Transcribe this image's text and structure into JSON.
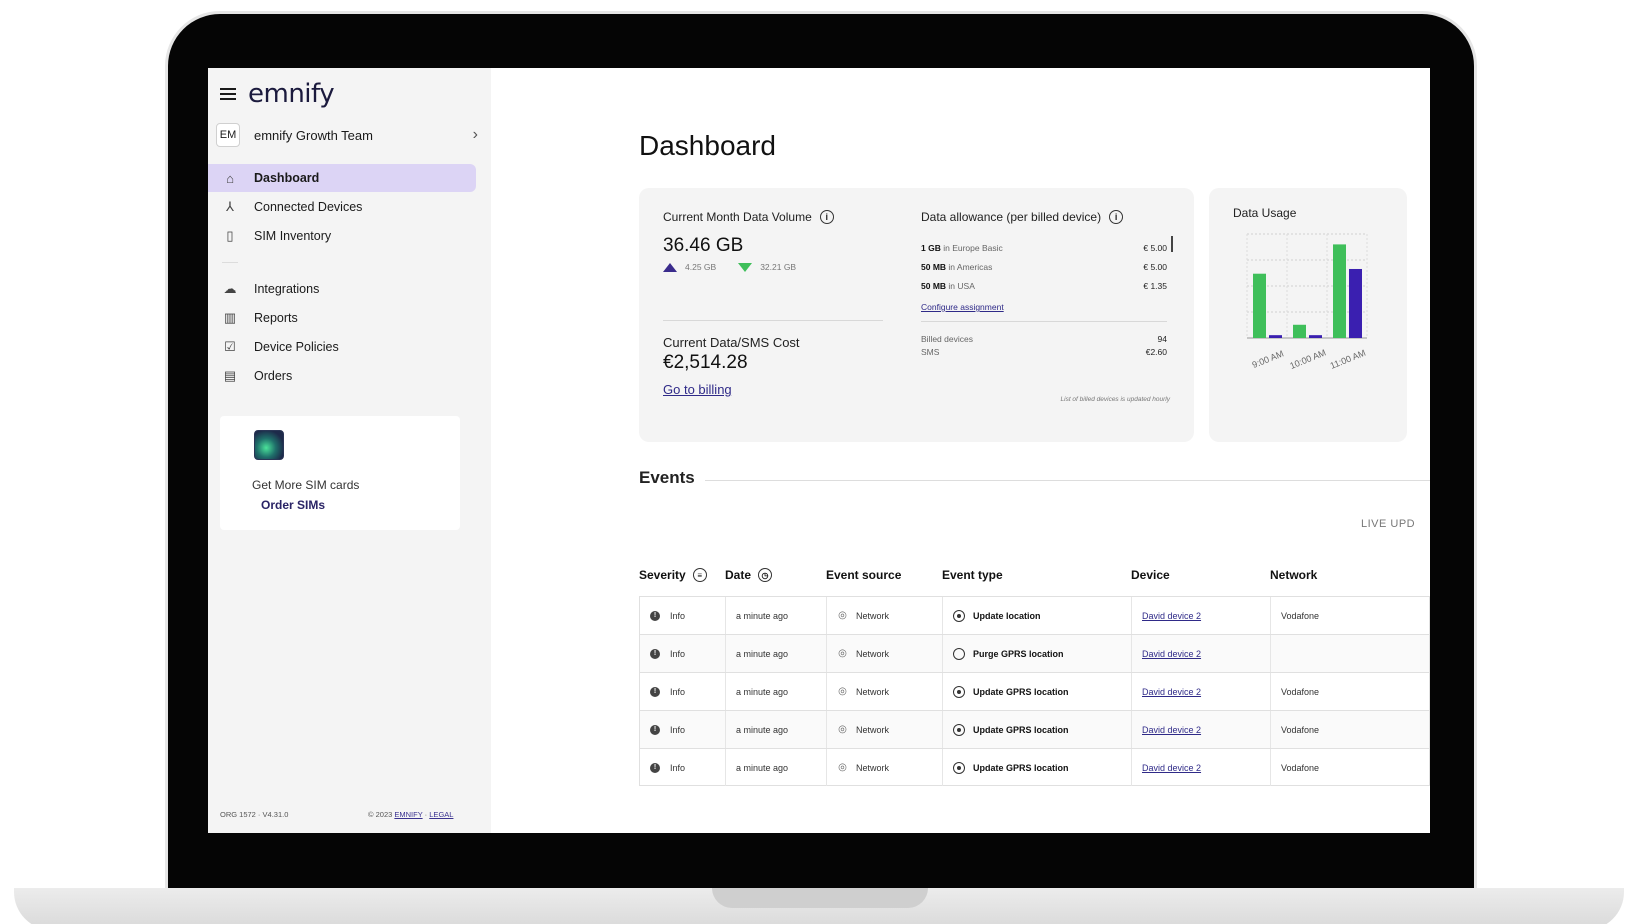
{
  "sidebar": {
    "logo": "emnify",
    "org_badge": "EM",
    "org_name": "emnify Growth Team",
    "nav_primary": [
      {
        "label": "Dashboard",
        "icon": "home-icon",
        "active": true
      },
      {
        "label": "Connected Devices",
        "icon": "devices-icon",
        "active": false
      },
      {
        "label": "SIM Inventory",
        "icon": "sim-icon",
        "active": false
      }
    ],
    "nav_secondary": [
      {
        "label": "Integrations",
        "icon": "cloud-icon"
      },
      {
        "label": "Reports",
        "icon": "chart-icon"
      },
      {
        "label": "Device Policies",
        "icon": "checklist-icon"
      },
      {
        "label": "Orders",
        "icon": "orders-icon"
      }
    ],
    "promo": {
      "text": "Get More SIM cards",
      "link": "Order SIMs"
    },
    "footer": {
      "org": "ORG 1572 · V4.31.0",
      "copyright": "© 2023",
      "emnify_link": "EMNIFY",
      "legal_link": "LEGAL"
    }
  },
  "main": {
    "title": "Dashboard",
    "data_volume": {
      "title": "Current Month Data Volume",
      "value": "36.46 GB",
      "up": "4.25 GB",
      "down": "32.21 GB"
    },
    "cost": {
      "title": "Current Data/SMS Cost",
      "value": "€2,514.28",
      "link": "Go to billing"
    },
    "allowance": {
      "title": "Data allowance (per billed device)",
      "rows": [
        {
          "amount": "1 GB",
          "region": "in Europe Basic",
          "price": "€ 5.00"
        },
        {
          "amount": "50 MB",
          "region": "in Americas",
          "price": "€ 5.00"
        },
        {
          "amount": "50 MB",
          "region": "in USA",
          "price": "€ 1.35"
        }
      ],
      "configure_link": "Configure assignment",
      "billed": [
        {
          "label": "Billed devices",
          "value": "94"
        },
        {
          "label": "SMS",
          "value": "€2.60"
        }
      ],
      "note": "List of billed devices is updated hourly"
    },
    "usage": {
      "title": "Data Usage"
    },
    "events": {
      "title": "Events",
      "live": "LIVE UPD",
      "columns": {
        "severity": "Severity",
        "date": "Date",
        "source": "Event source",
        "type": "Event type",
        "device": "Device",
        "network": "Network"
      },
      "rows": [
        {
          "severity": "Info",
          "date": "a minute ago",
          "source": "Network",
          "type": "Update location",
          "device": "David device 2",
          "network": "Vodafone"
        },
        {
          "severity": "Info",
          "date": "a minute ago",
          "source": "Network",
          "type": "Purge GPRS location",
          "device": "David device 2",
          "network": ""
        },
        {
          "severity": "Info",
          "date": "a minute ago",
          "source": "Network",
          "type": "Update GPRS location",
          "device": "David device 2",
          "network": "Vodafone"
        },
        {
          "severity": "Info",
          "date": "a minute ago",
          "source": "Network",
          "type": "Update GPRS location",
          "device": "David device 2",
          "network": "Vodafone"
        },
        {
          "severity": "Info",
          "date": "a minute ago",
          "source": "Network",
          "type": "Update GPRS location",
          "device": "David device 2",
          "network": "Vodafone"
        }
      ]
    }
  },
  "chart_data": {
    "type": "bar",
    "categories": [
      "9:00 AM",
      "10:00 AM",
      "11:00 AM"
    ],
    "series": [
      {
        "values": [
          6.8,
          1.4,
          9.9
        ],
        "color": "#3fbf5a"
      },
      {
        "values": [
          0.3,
          0.3,
          7.3
        ],
        "color": "#3a1fb0"
      }
    ],
    "title": "Data Usage",
    "ylim": [
      0,
      11
    ],
    "grid": true
  },
  "colors": {
    "accent": "#dcd4f5",
    "link": "#2f2a88",
    "green": "#3fbf5a",
    "purple": "#3a1fb0"
  }
}
